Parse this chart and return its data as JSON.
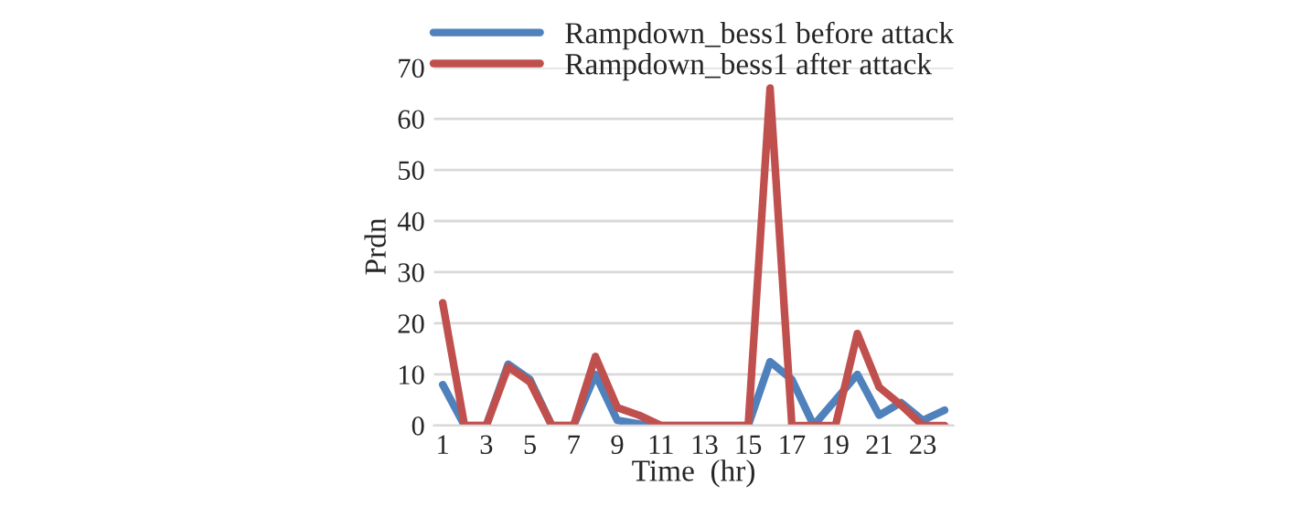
{
  "chart_data": {
    "type": "line",
    "xlabel": "Time  (hr)",
    "ylabel": "Prdn",
    "categories": [
      "1",
      null,
      "3",
      null,
      "5",
      null,
      "7",
      null,
      "9",
      null,
      "11",
      null,
      "13",
      null,
      "15",
      null,
      "17",
      null,
      "19",
      null,
      "21",
      null,
      "23",
      null
    ],
    "series": [
      {
        "name": "Rampdown_bess1 before attack",
        "color": "#4f81bd",
        "values": [
          8,
          0,
          0,
          12,
          9,
          0,
          0,
          10,
          1,
          0.3,
          0,
          0,
          0,
          0,
          0,
          12.5,
          9,
          0,
          5,
          10,
          2,
          4.5,
          1,
          3
        ]
      },
      {
        "name": "Rampdown_bess1 after attack",
        "color": "#c0504d",
        "values": [
          24,
          0,
          0,
          11.5,
          8.5,
          0,
          0,
          13.5,
          3.5,
          2,
          0,
          0,
          0,
          0,
          0,
          66,
          0,
          0,
          0,
          18,
          7.5,
          4,
          0,
          0
        ]
      }
    ],
    "ylim": [
      0,
      70
    ],
    "yticks": [
      0,
      10,
      20,
      30,
      40,
      50,
      60,
      70
    ],
    "grid": "y",
    "legend": "top",
    "marker": "none",
    "line_style": "solid"
  }
}
